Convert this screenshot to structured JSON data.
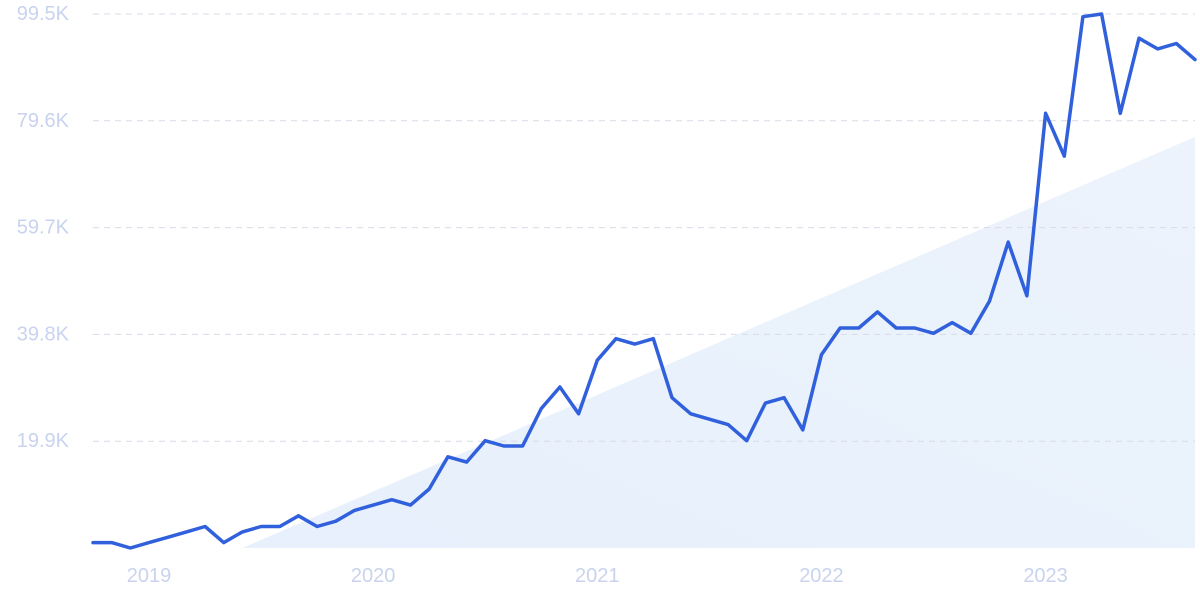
{
  "colors": {
    "line": "#3160dc",
    "trend_fill": "#e4eefb",
    "tick_text": "#c9d3ee",
    "grid": "#d7dce6",
    "background": "#ffffff"
  },
  "chart_data": {
    "type": "line",
    "title": "",
    "xlabel": "",
    "ylabel": "",
    "ylim": [
      0,
      99500
    ],
    "y_ticks": [
      {
        "value": 19900,
        "label": "19.9K"
      },
      {
        "value": 39800,
        "label": "39.8K"
      },
      {
        "value": 59700,
        "label": "59.7K"
      },
      {
        "value": 79600,
        "label": "79.6K"
      },
      {
        "value": 99500,
        "label": "99.5K"
      }
    ],
    "x_ticks": [
      {
        "value": "2019-01",
        "label": "2019"
      },
      {
        "value": "2020-01",
        "label": "2020"
      },
      {
        "value": "2021-01",
        "label": "2021"
      },
      {
        "value": "2022-01",
        "label": "2022"
      },
      {
        "value": "2023-01",
        "label": "2023"
      }
    ],
    "xlim": [
      "2018-10",
      "2023-09"
    ],
    "grid": true,
    "grid_axis": "y",
    "legend": "none",
    "trend": {
      "type": "area",
      "start": {
        "x": "2019-06",
        "y": 0
      },
      "end": {
        "x": "2023-09",
        "y": 76600
      }
    },
    "series": [
      {
        "x": [
          "2018-10",
          "2018-11",
          "2018-12",
          "2019-01",
          "2019-02",
          "2019-03",
          "2019-04",
          "2019-05",
          "2019-06",
          "2019-07",
          "2019-08",
          "2019-09",
          "2019-10",
          "2019-11",
          "2019-12",
          "2020-01",
          "2020-02",
          "2020-03",
          "2020-04",
          "2020-05",
          "2020-06",
          "2020-07",
          "2020-08",
          "2020-09",
          "2020-10",
          "2020-11",
          "2020-12",
          "2021-01",
          "2021-02",
          "2021-03",
          "2021-04",
          "2021-05",
          "2021-06",
          "2021-07",
          "2021-08",
          "2021-09",
          "2021-10",
          "2021-11",
          "2021-12",
          "2022-01",
          "2022-02",
          "2022-03",
          "2022-04",
          "2022-05",
          "2022-06",
          "2022-07",
          "2022-08",
          "2022-09",
          "2022-10",
          "2022-11",
          "2022-12",
          "2023-01",
          "2023-02",
          "2023-03",
          "2023-04",
          "2023-05",
          "2023-06",
          "2023-07",
          "2023-08",
          "2023-09"
        ],
        "values": [
          1000,
          1000,
          0,
          1000,
          2000,
          3000,
          4000,
          1000,
          3000,
          4000,
          4000,
          6000,
          4000,
          5000,
          7000,
          8000,
          9000,
          8000,
          11000,
          17000,
          16000,
          20000,
          19000,
          19000,
          26000,
          30000,
          25000,
          35000,
          39000,
          38000,
          39000,
          28000,
          25000,
          24000,
          23000,
          20000,
          27000,
          28000,
          22000,
          36000,
          41000,
          41000,
          44000,
          41000,
          41000,
          40000,
          42000,
          40000,
          46000,
          57000,
          47000,
          81000,
          73000,
          99000,
          99500,
          81000,
          95000,
          93000,
          94000,
          91000
        ]
      }
    ]
  }
}
